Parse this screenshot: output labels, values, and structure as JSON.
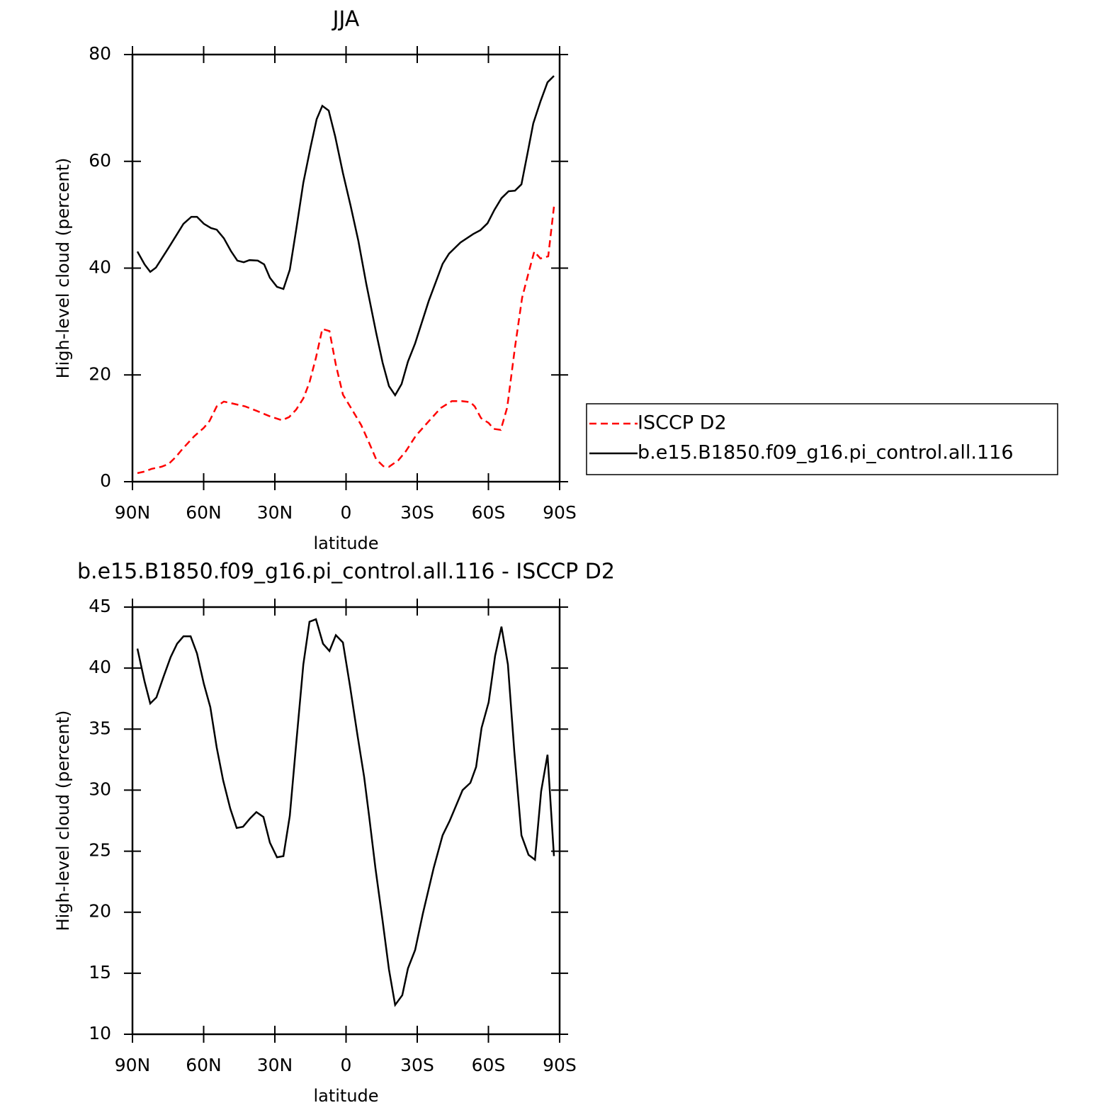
{
  "chart_data": [
    {
      "type": "line",
      "title": "JJA",
      "xlabel": "latitude",
      "ylabel": "High-level cloud (percent)",
      "xlim": [
        90,
        -90
      ],
      "xticks": [
        {
          "value": 90,
          "label": "90N"
        },
        {
          "value": 60,
          "label": "60N"
        },
        {
          "value": 30,
          "label": "30N"
        },
        0,
        {
          "value": -30,
          "label": "30S"
        },
        {
          "value": -60,
          "label": "60S"
        },
        {
          "value": -90,
          "label": "90S"
        }
      ],
      "ylim": [
        0,
        80
      ],
      "yticks": [
        0,
        20,
        40,
        60,
        80
      ],
      "legend": "right",
      "series": [
        {
          "name": "ISCCP D2",
          "color": "#ff0000",
          "line_style": "dashed",
          "x": [
            87.9,
            84.9,
            82,
            77.8,
            74.8,
            71.8,
            68.8,
            64,
            59.9,
            57.5,
            54.5,
            51.5,
            47.3,
            42.5,
            37.8,
            32.4,
            27,
            24,
            21,
            18,
            15.4,
            12.7,
            10,
            7,
            4.3,
            1.3,
            -2.5,
            -6.4,
            -9.7,
            -12.7,
            -15.7,
            -18.1,
            -22,
            -25.2,
            -29.4,
            -34.8,
            -39.9,
            -44.6,
            -48.8,
            -52.4,
            -54.2,
            -56.9,
            -60.1,
            -62.2,
            -65.2,
            -67.9,
            -71.2,
            -74.2,
            -76.9,
            -79.3,
            -81.9,
            -85.2,
            -87.6
          ],
          "values": [
            1.6,
            1.9,
            2.4,
            2.8,
            3.3,
            4.6,
            6.2,
            8.5,
            10.1,
            11.4,
            14.1,
            15,
            14.6,
            14.1,
            13.3,
            12.3,
            11.5,
            12.1,
            13.5,
            15.6,
            18.6,
            23.2,
            28.6,
            28.2,
            21.9,
            16.3,
            13.5,
            10.6,
            7.3,
            4.2,
            2.9,
            2.8,
            4,
            5.7,
            8.6,
            11.3,
            13.8,
            15.1,
            15.1,
            14.9,
            14.1,
            11.9,
            11,
            9.9,
            9.7,
            13.9,
            25.2,
            34.5,
            39.1,
            43.1,
            41.8,
            42.2,
            51.5
          ]
        },
        {
          "name": "b.e15.B1850.f09_g16.pi_control.all.116",
          "color": "#000000",
          "line_style": "solid",
          "x": [
            87.9,
            84.9,
            82.5,
            80.1,
            74.8,
            68.5,
            65.2,
            62.8,
            59.9,
            56.9,
            54.5,
            51.5,
            48.5,
            45.8,
            43.1,
            40.7,
            37.2,
            34.5,
            32.1,
            29.1,
            26.4,
            23.7,
            21,
            18,
            15,
            12.4,
            10,
            7.3,
            4.6,
            1.3,
            -1.9,
            -5.2,
            -8.5,
            -12.7,
            -15.4,
            -18.1,
            -20.7,
            -23.4,
            -26.1,
            -29.1,
            -34.8,
            -40.7,
            -43.4,
            -48.2,
            -53.6,
            -56.6,
            -59.6,
            -62.5,
            -65.5,
            -68.5,
            -71.2,
            -73.9,
            -76.6,
            -78.9,
            -81.9,
            -84.9,
            -87.6
          ],
          "values": [
            43.1,
            40.7,
            39.3,
            40.1,
            43.8,
            48.3,
            49.6,
            49.6,
            48.3,
            47.5,
            47.2,
            45.6,
            43.2,
            41.4,
            41.1,
            41.5,
            41.4,
            40.7,
            38.2,
            36.5,
            36.1,
            39.7,
            47.2,
            56,
            62.6,
            67.9,
            70.4,
            69.5,
            64.7,
            57.8,
            51.7,
            45.1,
            37.1,
            27.9,
            22.3,
            17.9,
            16.2,
            18.3,
            22.5,
            25.9,
            33.8,
            40.8,
            42.7,
            44.8,
            46.4,
            47.1,
            48.4,
            50.9,
            53.1,
            54.4,
            54.5,
            55.7,
            61.8,
            67.1,
            71.2,
            74.8,
            76
          ]
        }
      ]
    },
    {
      "type": "line",
      "title": "b.e15.B1850.f09_g16.pi_control.all.116 - ISCCP D2",
      "xlabel": "latitude",
      "ylabel": "High-level cloud (percent)",
      "xlim": [
        90,
        -90
      ],
      "xticks": [
        {
          "value": 90,
          "label": "90N"
        },
        {
          "value": 60,
          "label": "60N"
        },
        {
          "value": 30,
          "label": "30N"
        },
        0,
        {
          "value": -30,
          "label": "30S"
        },
        {
          "value": -60,
          "label": "60S"
        },
        {
          "value": -90,
          "label": "90S"
        }
      ],
      "ylim": [
        10,
        45
      ],
      "yticks": [
        10,
        15,
        20,
        25,
        30,
        35,
        40,
        45
      ],
      "series": [
        {
          "color": "#000000",
          "line_style": "solid",
          "x": [
            87.9,
            84.9,
            82.5,
            79.9,
            76.9,
            73.9,
            71.2,
            68.5,
            65.5,
            62.8,
            59.9,
            57.2,
            54.5,
            51.8,
            48.8,
            46.1,
            43.4,
            40.4,
            37.8,
            34.8,
            32.1,
            29.1,
            26.4,
            23.7,
            21,
            18,
            15.4,
            12.7,
            9.7,
            7,
            4.3,
            1.3,
            -1.6,
            -4.9,
            -7.6,
            -9.7,
            -12.4,
            -15.4,
            -18.1,
            -20.7,
            -23.7,
            -26.1,
            -29.1,
            -32.4,
            -36.9,
            -40.7,
            -43.7,
            -49.1,
            -52.4,
            -54.8,
            -57.1,
            -60.1,
            -62.8,
            -65.5,
            -68.2,
            -70.9,
            -73.9,
            -76.9,
            -79.6,
            -82.2,
            -84.9,
            -87.6
          ],
          "values": [
            41.6,
            38.9,
            37.1,
            37.6,
            39.3,
            40.9,
            42,
            42.6,
            42.6,
            41.2,
            38.7,
            36.8,
            33.5,
            30.8,
            28.5,
            26.9,
            27,
            27.7,
            28.2,
            27.8,
            25.7,
            24.5,
            24.6,
            27.9,
            33.8,
            40.3,
            43.8,
            44,
            42,
            41.4,
            42.7,
            42.1,
            38.6,
            34.4,
            31.1,
            27.9,
            23.6,
            19.3,
            15.3,
            12.4,
            13.2,
            15.4,
            16.9,
            19.9,
            23.6,
            26.3,
            27.5,
            30,
            30.6,
            31.9,
            35.1,
            37.2,
            41,
            43.4,
            40.3,
            33.2,
            26.3,
            24.7,
            24.3,
            29.9,
            32.9,
            24.6
          ]
        }
      ]
    }
  ]
}
